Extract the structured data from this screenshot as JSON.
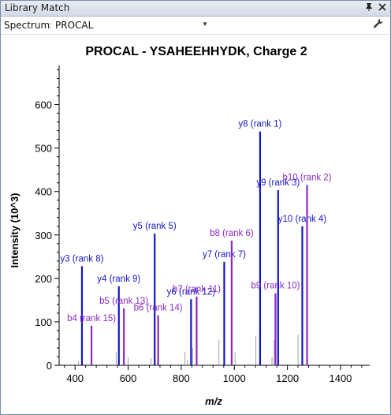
{
  "window": {
    "title": "Library Match",
    "pin_glyph": "📌",
    "close_glyph": "✕"
  },
  "toolbar": {
    "spectrum_label": "Spectrum:",
    "spectrum_value": "PROCAL",
    "dropdown_icon": "chevron-down-icon",
    "settings_icon": "wrench-icon"
  },
  "colors": {
    "y_ion": "#1515c8",
    "b_ion": "#8a2bbf",
    "unmatched": "#a0a0a0",
    "axis": "#000000",
    "title": "#000000"
  },
  "chart_data": {
    "type": "bar",
    "title": "PROCAL - YSAHEEHHYDK, Charge 2",
    "xlabel": "m/z",
    "ylabel": "Intensity (10^3)",
    "xlim": [
      340,
      1510
    ],
    "ylim": [
      0,
      690
    ],
    "x_ticks": [
      400,
      600,
      800,
      1000,
      1200,
      1400
    ],
    "y_ticks": [
      0,
      100,
      200,
      300,
      400,
      500,
      600
    ],
    "grid": false,
    "legend": "none",
    "matched_peaks": [
      {
        "label": "y3 (rank 8)",
        "ion": "y",
        "mz": 426,
        "intensity": 228
      },
      {
        "label": "b4 (rank 15)",
        "ion": "b",
        "mz": 462,
        "intensity": 91
      },
      {
        "label": "y4 (rank 9)",
        "ion": "y",
        "mz": 565,
        "intensity": 182
      },
      {
        "label": "b5 (rank 13)",
        "ion": "b",
        "mz": 584,
        "intensity": 131
      },
      {
        "label": "y5 (rank 5)",
        "ion": "y",
        "mz": 700,
        "intensity": 303
      },
      {
        "label": "b6 (rank 14)",
        "ion": "b",
        "mz": 713,
        "intensity": 115
      },
      {
        "label": "y6 (rank 12)",
        "ion": "y",
        "mz": 837,
        "intensity": 152
      },
      {
        "label": "b7 (rank 11)",
        "ion": "b",
        "mz": 858,
        "intensity": 158
      },
      {
        "label": "y7 (rank 7)",
        "ion": "y",
        "mz": 962,
        "intensity": 238
      },
      {
        "label": "b8 (rank 6)",
        "ion": "b",
        "mz": 990,
        "intensity": 287
      },
      {
        "label": "y8 (rank 1)",
        "ion": "y",
        "mz": 1097,
        "intensity": 538
      },
      {
        "label": "b9 (rank 10)",
        "ion": "b",
        "mz": 1155,
        "intensity": 166
      },
      {
        "label": "y9 (rank 3)",
        "ion": "y",
        "mz": 1165,
        "intensity": 403
      },
      {
        "label": "y10 (rank 4)",
        "ion": "y",
        "mz": 1256,
        "intensity": 320
      },
      {
        "label": "b10 (rank 2)",
        "ion": "b",
        "mz": 1274,
        "intensity": 415
      }
    ],
    "unmatched_peaks": [
      {
        "mz": 413,
        "intensity": 9
      },
      {
        "mz": 555,
        "intensity": 30
      },
      {
        "mz": 600,
        "intensity": 18
      },
      {
        "mz": 687,
        "intensity": 16
      },
      {
        "mz": 814,
        "intensity": 30
      },
      {
        "mz": 823,
        "intensity": 12
      },
      {
        "mz": 843,
        "intensity": 40
      },
      {
        "mz": 942,
        "intensity": 58
      },
      {
        "mz": 1081,
        "intensity": 68
      },
      {
        "mz": 1142,
        "intensity": 18
      },
      {
        "mz": 1150,
        "intensity": 58
      },
      {
        "mz": 1240,
        "intensity": 70
      },
      {
        "mz": 1003,
        "intensity": 30
      }
    ]
  }
}
